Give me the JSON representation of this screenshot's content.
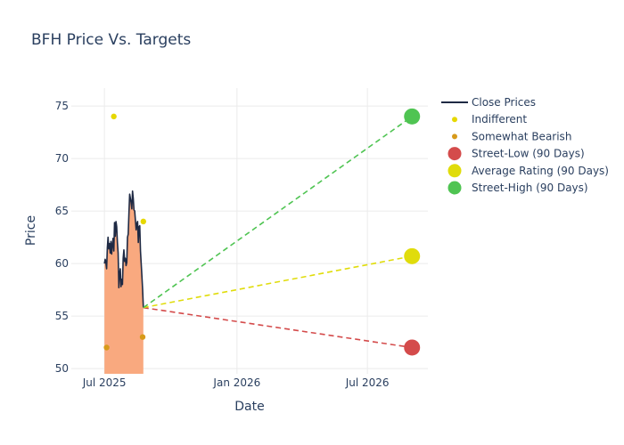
{
  "chart_data": {
    "type": "line",
    "title": "BFH Price Vs. Targets",
    "xlabel": "Date",
    "ylabel": "Price",
    "xlim": [
      "2025-05-16",
      "2026-09-23"
    ],
    "ylim": [
      49.5,
      76.7
    ],
    "x_ticks": [
      {
        "date": "2025-07-01",
        "label": "Jul 2025"
      },
      {
        "date": "2026-01-01",
        "label": "Jan 2026"
      },
      {
        "date": "2026-07-01",
        "label": "Jul 2026"
      }
    ],
    "y_ticks": [
      50,
      55,
      60,
      65,
      70,
      75
    ],
    "grid": true,
    "legend_position": "right",
    "colors": {
      "close": "#1f2a44",
      "close_fill": "#f9a97f",
      "indifferent": "#e6d800",
      "bearish": "#d79a1a",
      "low": "#d44b4b",
      "avg": "#e0dc0b",
      "high": "#4fc452"
    },
    "series": [
      {
        "name": "Close Prices",
        "kind": "line",
        "points": [
          [
            "2025-07-01",
            60.0
          ],
          [
            "2025-07-02",
            60.4
          ],
          [
            "2025-07-03",
            60.1
          ],
          [
            "2025-07-04",
            59.5
          ],
          [
            "2025-07-05",
            61.5
          ],
          [
            "2025-07-06",
            62.5
          ],
          [
            "2025-07-07",
            61.4
          ],
          [
            "2025-07-08",
            61.9
          ],
          [
            "2025-07-09",
            61.0
          ],
          [
            "2025-07-10",
            62.1
          ],
          [
            "2025-07-11",
            60.9
          ],
          [
            "2025-07-12",
            61.8
          ],
          [
            "2025-07-13",
            62.4
          ],
          [
            "2025-07-14",
            61.2
          ],
          [
            "2025-07-15",
            63.9
          ],
          [
            "2025-07-16",
            62.6
          ],
          [
            "2025-07-17",
            64.0
          ],
          [
            "2025-07-18",
            63.5
          ],
          [
            "2025-07-19",
            62.0
          ],
          [
            "2025-07-20",
            61.0
          ],
          [
            "2025-07-21",
            57.7
          ],
          [
            "2025-07-22",
            59.0
          ],
          [
            "2025-07-23",
            59.5
          ],
          [
            "2025-07-24",
            57.8
          ],
          [
            "2025-07-25",
            58.5
          ],
          [
            "2025-07-26",
            58.0
          ],
          [
            "2025-07-27",
            60.5
          ],
          [
            "2025-07-28",
            61.3
          ],
          [
            "2025-07-29",
            60.2
          ],
          [
            "2025-07-30",
            60.5
          ],
          [
            "2025-07-31",
            59.8
          ],
          [
            "2025-08-01",
            60.1
          ],
          [
            "2025-08-02",
            62.5
          ],
          [
            "2025-08-03",
            62.8
          ],
          [
            "2025-08-04",
            64.8
          ],
          [
            "2025-08-05",
            66.6
          ],
          [
            "2025-08-06",
            66.2
          ],
          [
            "2025-08-07",
            65.8
          ],
          [
            "2025-08-08",
            65.2
          ],
          [
            "2025-08-09",
            66.9
          ],
          [
            "2025-08-10",
            66.2
          ],
          [
            "2025-08-11",
            65.1
          ],
          [
            "2025-08-12",
            65.0
          ],
          [
            "2025-08-13",
            64.1
          ],
          [
            "2025-08-14",
            63.2
          ],
          [
            "2025-08-15",
            63.8
          ],
          [
            "2025-08-16",
            64.0
          ],
          [
            "2025-08-17",
            62.0
          ],
          [
            "2025-08-18",
            63.5
          ],
          [
            "2025-08-19",
            63.6
          ],
          [
            "2025-08-20",
            61.2
          ],
          [
            "2025-08-21",
            60.0
          ],
          [
            "2025-08-22",
            58.8
          ],
          [
            "2025-08-23",
            57.5
          ],
          [
            "2025-08-24",
            55.8
          ]
        ]
      },
      {
        "name": "Indifferent",
        "kind": "dots",
        "points": [
          [
            "2025-07-14",
            74.0
          ],
          [
            "2025-08-24",
            64.0
          ]
        ]
      },
      {
        "name": "Somewhat Bearish",
        "kind": "dots",
        "points": [
          [
            "2025-07-04",
            52.0
          ],
          [
            "2025-08-23",
            53.0
          ]
        ]
      },
      {
        "name": "Street-Low (90 Days)",
        "kind": "target",
        "from": [
          "2025-08-24",
          55.8
        ],
        "to": [
          "2026-09-01",
          52.0
        ]
      },
      {
        "name": "Average Rating (90 Days)",
        "kind": "target",
        "from": [
          "2025-08-24",
          55.8
        ],
        "to": [
          "2026-09-01",
          60.7
        ]
      },
      {
        "name": "Street-High (90 Days)",
        "kind": "target",
        "from": [
          "2025-08-24",
          55.8
        ],
        "to": [
          "2026-09-01",
          74.0
        ]
      }
    ]
  }
}
